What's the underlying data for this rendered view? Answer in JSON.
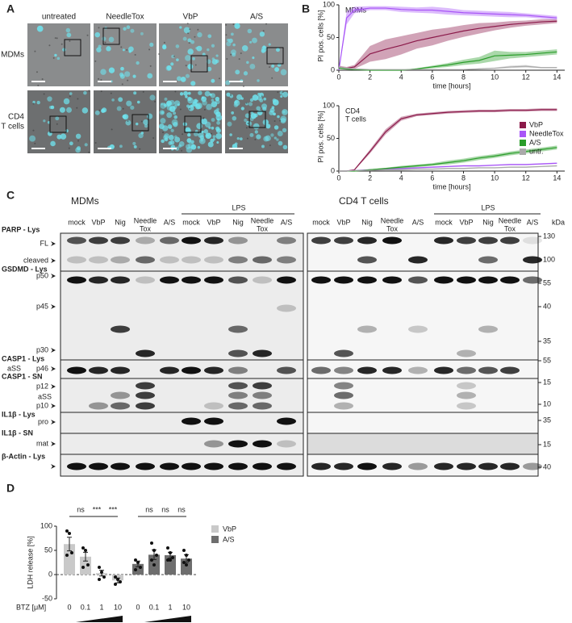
{
  "panel_labels": [
    "A",
    "B",
    "C",
    "D"
  ],
  "panel_a": {
    "columns": [
      "untreated",
      "NeedleTox",
      "VbP",
      "A/S"
    ],
    "rows": [
      {
        "lines": [
          "MDMs"
        ]
      },
      {
        "lines": [
          "CD4",
          "T cells"
        ]
      }
    ]
  },
  "chart_data": [
    {
      "type": "line",
      "label": [
        "MDMs"
      ],
      "xlabel": "time [hours]",
      "ylabel": "PI pos. cells [%]",
      "x": [
        0,
        0.5,
        1,
        2,
        3,
        4,
        5,
        6,
        7,
        8,
        9,
        10,
        11,
        12,
        13,
        14
      ],
      "xlim": [
        0,
        14.5
      ],
      "xticks": [
        0,
        2,
        4,
        6,
        8,
        10,
        12,
        14
      ],
      "ylim": [
        0,
        100
      ],
      "yticks": [
        0,
        50,
        100
      ],
      "series": [
        {
          "name": "VbP",
          "color": "#8b1a4a",
          "values": [
            5,
            3,
            5,
            25,
            32,
            38,
            45,
            50,
            55,
            60,
            64,
            67,
            70,
            72,
            74,
            75
          ],
          "errors": [
            2,
            2,
            3,
            12,
            15,
            14,
            12,
            12,
            10,
            9,
            8,
            6,
            5,
            4,
            4,
            3
          ]
        },
        {
          "name": "NeedleTox",
          "color": "#a855f7",
          "values": [
            0,
            80,
            92,
            95,
            95,
            93,
            92,
            92,
            90,
            88,
            87,
            86,
            85,
            84,
            82,
            80
          ],
          "errors": [
            0,
            10,
            5,
            3,
            3,
            4,
            4,
            5,
            5,
            4,
            4,
            4,
            4,
            3,
            3,
            3
          ]
        },
        {
          "name": "A/S",
          "color": "#2a9d2a",
          "values": [
            3,
            2,
            1,
            0,
            0,
            0,
            2,
            5,
            8,
            12,
            15,
            22,
            23,
            24,
            26,
            28
          ],
          "errors": [
            1,
            1,
            1,
            0,
            0,
            0,
            1,
            2,
            3,
            4,
            5,
            8,
            5,
            4,
            4,
            4
          ]
        },
        {
          "name": "untr.",
          "color": "#aaaaaa",
          "values": [
            5,
            3,
            2,
            1,
            1,
            1,
            1,
            1,
            1,
            1,
            2,
            3,
            5,
            6,
            4,
            4
          ],
          "errors": [
            1,
            1,
            1,
            0,
            0,
            0,
            0,
            0,
            0,
            0,
            1,
            1,
            2,
            2,
            1,
            1
          ]
        }
      ],
      "legend": false
    },
    {
      "type": "line",
      "label": [
        "CD4",
        "T cells"
      ],
      "xlabel": "time [hours]",
      "ylabel": "PI pos. cells [%]",
      "x": [
        0,
        0.5,
        1,
        2,
        3,
        4,
        5,
        6,
        7,
        8,
        9,
        10,
        11,
        12,
        13,
        14
      ],
      "xlim": [
        0,
        14.5
      ],
      "xticks": [
        0,
        2,
        4,
        6,
        8,
        10,
        12,
        14
      ],
      "ylim": [
        0,
        100
      ],
      "yticks": [
        0,
        50,
        100
      ],
      "series": [
        {
          "name": "VbP",
          "color": "#8b1a4a",
          "values": [
            0,
            0,
            2,
            30,
            60,
            80,
            86,
            88,
            90,
            91,
            92,
            92,
            93,
            93,
            94,
            94
          ],
          "errors": [
            0,
            0,
            1,
            3,
            4,
            3,
            2,
            2,
            2,
            2,
            2,
            2,
            2,
            2,
            2,
            2
          ]
        },
        {
          "name": "NeedleTox",
          "color": "#a855f7",
          "values": [
            0,
            0,
            1,
            2,
            3,
            4,
            5,
            6,
            7,
            8,
            8,
            9,
            10,
            10,
            11,
            12
          ],
          "errors": [
            0,
            0,
            0,
            1,
            1,
            1,
            1,
            1,
            1,
            1,
            1,
            1,
            1,
            1,
            1,
            1
          ]
        },
        {
          "name": "A/S",
          "color": "#2a9d2a",
          "values": [
            0,
            0,
            0,
            2,
            4,
            6,
            8,
            10,
            13,
            16,
            20,
            23,
            27,
            30,
            33,
            36
          ],
          "errors": [
            0,
            0,
            0,
            1,
            1,
            2,
            2,
            2,
            3,
            3,
            3,
            3,
            3,
            3,
            3,
            3
          ]
        },
        {
          "name": "untr.",
          "color": "#aaaaaa",
          "values": [
            0,
            0,
            1,
            1,
            2,
            2,
            3,
            3,
            4,
            4,
            5,
            5,
            6,
            6,
            7,
            8
          ],
          "errors": [
            0,
            0,
            0,
            0,
            1,
            1,
            1,
            1,
            1,
            1,
            1,
            1,
            1,
            1,
            1,
            1
          ]
        }
      ],
      "legend": true
    },
    {
      "type": "bar",
      "ylabel": "LDH release [%]",
      "xlabel": "BTZ [μM]",
      "categories": [
        "0",
        "0.1",
        "1",
        "10"
      ],
      "ylim": [
        -50,
        100
      ],
      "yticks": [
        -50,
        0,
        50,
        100
      ],
      "series": [
        {
          "name": "VbP",
          "color": "#c9c9c9",
          "values": [
            63,
            37,
            3,
            -12
          ],
          "errors": [
            14,
            9,
            6,
            5
          ],
          "points": [
            [
              90,
              85,
              45,
              40
            ],
            [
              55,
              50,
              20,
              15
            ],
            [
              15,
              5,
              -5,
              -10
            ],
            [
              -5,
              -10,
              -15,
              -20
            ]
          ],
          "significance": [
            "ns",
            "***",
            "***"
          ]
        },
        {
          "name": "A/S",
          "color": "#6e6e6e",
          "values": [
            22,
            41,
            40,
            33
          ],
          "errors": [
            6,
            10,
            6,
            8
          ],
          "points": [
            [
              30,
              25,
              15,
              10
            ],
            [
              65,
              50,
              40,
              30,
              20
            ],
            [
              55,
              45,
              35,
              30,
              30
            ],
            [
              50,
              40,
              30,
              25,
              20
            ]
          ],
          "significance": [
            "ns",
            "ns",
            "ns"
          ]
        }
      ],
      "legend": true
    }
  ],
  "panel_c": {
    "groups": [
      "MDMs",
      "CD4 T cells"
    ],
    "treatment": "LPS",
    "kda": "kDa",
    "lanes": [
      [
        "mock"
      ],
      [
        "VbP"
      ],
      [
        "Nig"
      ],
      [
        "Needle",
        "Tox"
      ],
      [
        "A/S"
      ]
    ],
    "sections": [
      {
        "title": "PARP - Lys",
        "bands": [
          "FL",
          "cleaved"
        ],
        "markers": [
          130,
          100
        ]
      },
      {
        "title": "GSDMD - Lys",
        "bands": [
          "p50",
          "p45",
          "p30"
        ],
        "markers": [
          55,
          40,
          35
        ]
      },
      {
        "title": "CASP1 - Lys",
        "bands": [
          "aSS",
          "p46"
        ],
        "markers": [
          55
        ]
      },
      {
        "title": "CASP1 - SN",
        "bands": [
          "p12",
          "aSS",
          "p10"
        ],
        "markers": [
          15,
          10
        ]
      },
      {
        "title": "IL1β - Lys",
        "bands": [
          "pro"
        ],
        "markers": [
          35
        ]
      },
      {
        "title": "IL1β - SN",
        "bands": [
          "mat"
        ],
        "markers": [
          15
        ]
      },
      {
        "title": "β-Actin - Lys",
        "bands": [],
        "markers": [
          40
        ]
      }
    ]
  }
}
